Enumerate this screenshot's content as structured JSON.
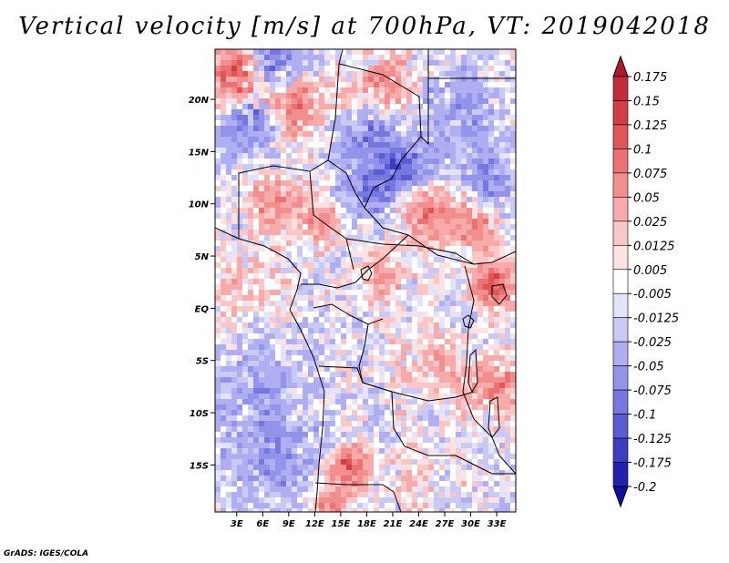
{
  "title": "Vertical velocity [m/s] at 700hPa, VT: 2019042018",
  "footer": "GrADS: IGES/COLA",
  "chart_data": {
    "type": "heatmap",
    "title": "Vertical velocity [m/s] at 700hPa, VT: 2019042018",
    "variable": "Vertical velocity",
    "units": "m/s",
    "level": "700hPa",
    "valid_time": "2019042018",
    "x_ticks": [
      "3E",
      "6E",
      "9E",
      "12E",
      "15E",
      "18E",
      "21E",
      "24E",
      "27E",
      "30E",
      "33E"
    ],
    "x_tick_values": [
      3,
      6,
      9,
      12,
      15,
      18,
      21,
      24,
      27,
      30,
      33
    ],
    "y_ticks": [
      "20N",
      "15N",
      "10N",
      "5N",
      "EQ",
      "5S",
      "10S",
      "15S"
    ],
    "y_tick_values": [
      20,
      15,
      10,
      5,
      0,
      -5,
      -10,
      -15
    ],
    "xlim": [
      0.5,
      35.2
    ],
    "ylim": [
      -19.5,
      24.8
    ],
    "colorbar": {
      "labels": [
        "0.175",
        "0.15",
        "0.125",
        "0.1",
        "0.075",
        "0.05",
        "0.025",
        "0.0125",
        "0.005",
        "-0.005",
        "-0.0125",
        "-0.025",
        "-0.05",
        "-0.075",
        "-0.1",
        "-0.125",
        "-0.175",
        "-0.2"
      ],
      "colors": [
        "#b2182b",
        "#c42b36",
        "#d43d44",
        "#e05656",
        "#ea7272",
        "#f28e8e",
        "#f6aaaa",
        "#fac7c7",
        "#fde2e2",
        "#ffffff",
        "#e3e3fb",
        "#c9c9f6",
        "#aeaef1",
        "#9393ea",
        "#7777e0",
        "#5b5bd3",
        "#3d3dc4",
        "#2222ad",
        "#1010a0"
      ]
    }
  }
}
